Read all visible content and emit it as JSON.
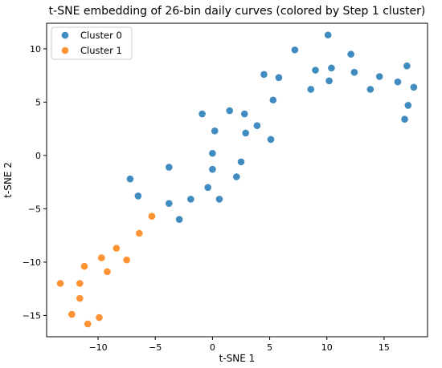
{
  "chart_data": {
    "type": "scatter",
    "title": "t-SNE embedding of 26-bin daily curves (colored by Step 1 cluster)",
    "xlabel": "t-SNE 1",
    "ylabel": "t-SNE 2",
    "xlim": [
      -14.5,
      18.8
    ],
    "ylim": [
      -17.0,
      12.4
    ],
    "xticks": [
      -10,
      -5,
      0,
      5,
      10,
      15
    ],
    "yticks": [
      -15,
      -10,
      -5,
      0,
      5,
      10
    ],
    "grid": false,
    "legend_position": "top-left",
    "series": [
      {
        "name": "Cluster 0",
        "color": "#1f77b4",
        "points": [
          [
            -7.2,
            -2.2
          ],
          [
            -6.5,
            -3.8
          ],
          [
            -3.8,
            -1.1
          ],
          [
            -3.8,
            -4.5
          ],
          [
            -2.9,
            -6.0
          ],
          [
            -1.9,
            -4.1
          ],
          [
            -0.9,
            3.9
          ],
          [
            -0.4,
            -3.0
          ],
          [
            0.0,
            0.2
          ],
          [
            0.0,
            -1.3
          ],
          [
            0.2,
            2.3
          ],
          [
            0.6,
            -4.1
          ],
          [
            1.5,
            4.2
          ],
          [
            2.1,
            -2.0
          ],
          [
            2.5,
            -0.6
          ],
          [
            2.8,
            3.9
          ],
          [
            2.9,
            2.1
          ],
          [
            3.9,
            2.8
          ],
          [
            4.5,
            7.6
          ],
          [
            5.1,
            1.5
          ],
          [
            5.3,
            5.2
          ],
          [
            5.8,
            7.3
          ],
          [
            7.2,
            9.9
          ],
          [
            8.6,
            6.2
          ],
          [
            9.0,
            8.0
          ],
          [
            10.1,
            11.3
          ],
          [
            10.2,
            7.0
          ],
          [
            10.4,
            8.2
          ],
          [
            12.1,
            9.5
          ],
          [
            12.4,
            7.8
          ],
          [
            13.8,
            6.2
          ],
          [
            14.6,
            7.4
          ],
          [
            16.2,
            6.9
          ],
          [
            16.8,
            3.4
          ],
          [
            17.0,
            8.4
          ],
          [
            17.1,
            4.7
          ],
          [
            17.6,
            6.4
          ]
        ]
      },
      {
        "name": "Cluster 1",
        "color": "#ff7f0e",
        "points": [
          [
            -13.3,
            -12.0
          ],
          [
            -12.3,
            -14.9
          ],
          [
            -11.6,
            -12.0
          ],
          [
            -11.6,
            -13.4
          ],
          [
            -11.2,
            -10.4
          ],
          [
            -10.9,
            -15.8
          ],
          [
            -9.9,
            -15.2
          ],
          [
            -9.7,
            -9.6
          ],
          [
            -9.2,
            -10.9
          ],
          [
            -8.4,
            -8.7
          ],
          [
            -7.5,
            -9.8
          ],
          [
            -6.4,
            -7.3
          ],
          [
            -5.3,
            -5.7
          ]
        ]
      }
    ]
  }
}
